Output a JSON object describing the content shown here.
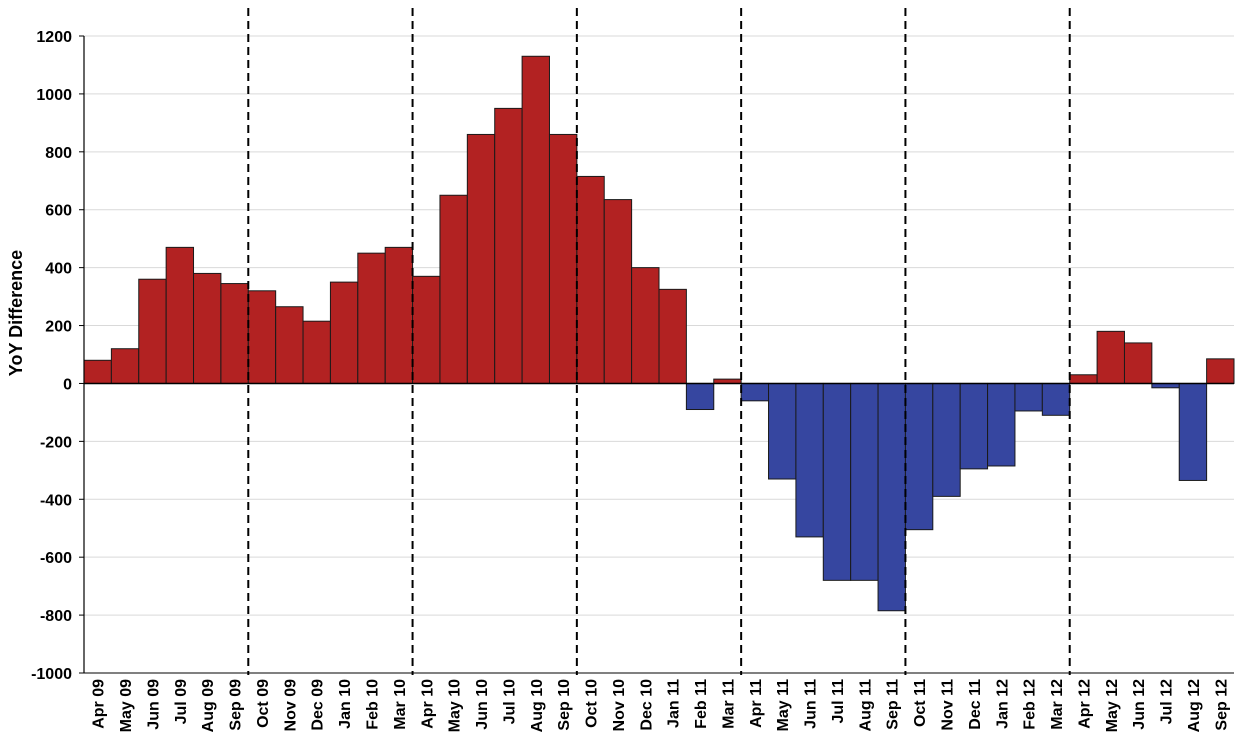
{
  "chart_data": {
    "type": "bar",
    "title": "",
    "xlabel": "",
    "ylabel": "YoY Difference",
    "ylim": [
      -1000,
      1200
    ],
    "yticks": [
      -1000,
      -800,
      -600,
      -400,
      -200,
      0,
      200,
      400,
      600,
      800,
      1000,
      1200
    ],
    "grid": true,
    "legend": "none",
    "colors": {
      "positive": "#B22222",
      "negative": "#3646A0",
      "bar_outline": "#1a1a1a",
      "gridline": "#d9d9d9",
      "divider": "#000000"
    },
    "categories": [
      "Apr 09",
      "May 09",
      "Jun 09",
      "Jul 09",
      "Aug 09",
      "Sep 09",
      "Oct 09",
      "Nov 09",
      "Dec 09",
      "Jan 10",
      "Feb 10",
      "Mar 10",
      "Apr 10",
      "May 10",
      "Jun 10",
      "Jul 10",
      "Aug 10",
      "Sep 10",
      "Oct 10",
      "Nov 10",
      "Dec 10",
      "Jan 11",
      "Feb 11",
      "Mar 11",
      "Apr 11",
      "May 11",
      "Jun 11",
      "Jul 11",
      "Aug 11",
      "Sep 11",
      "Oct 11",
      "Nov 11",
      "Dec 11",
      "Jan 12",
      "Feb 12",
      "Mar 12",
      "Apr 12",
      "May 12",
      "Jun 12",
      "Jul 12",
      "Aug 12",
      "Sep 12"
    ],
    "values": [
      80,
      120,
      360,
      470,
      380,
      345,
      320,
      265,
      215,
      350,
      450,
      470,
      370,
      650,
      860,
      950,
      1130,
      860,
      715,
      635,
      400,
      325,
      -90,
      15,
      -60,
      -330,
      -530,
      -680,
      -680,
      -785,
      -505,
      -390,
      -295,
      -285,
      -95,
      -110,
      30,
      180,
      140,
      -15,
      -335,
      85
    ],
    "period_dividers_after": [
      "Sep 09",
      "Mar 10",
      "Sep 10",
      "Mar 11",
      "Sep 11",
      "Mar 12"
    ]
  }
}
